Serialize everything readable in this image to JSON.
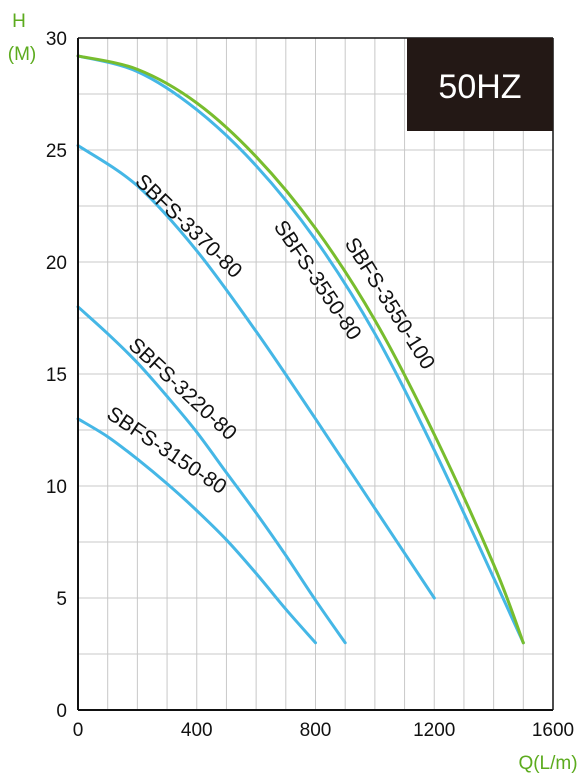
{
  "chart_data": {
    "type": "line",
    "frequency_badge": "50HZ",
    "y_axis_label_top": "H",
    "y_axis_label_unit": "(M)",
    "x_axis_label": "Q(L/m)",
    "xlim": [
      0,
      1600
    ],
    "ylim": [
      0,
      30
    ],
    "x_ticks": [
      "0",
      "400",
      "800",
      "1200",
      "1600"
    ],
    "y_ticks": [
      "0",
      "5",
      "10",
      "15",
      "20",
      "25",
      "30"
    ],
    "grid": true,
    "colors": {
      "blue": "#45b7e6",
      "green": "#78bd2e",
      "axis": "#111111",
      "grid": "#c8c8c8",
      "badge": "#231815",
      "axis_label": "#5cab1e"
    },
    "series": [
      {
        "name": "SBFS-3150-80",
        "color": "#45b7e6",
        "x": [
          0,
          100,
          200,
          300,
          400,
          500,
          600,
          700,
          800
        ],
        "y": [
          13,
          12.2,
          11.2,
          10.1,
          8.9,
          7.6,
          6.1,
          4.5,
          3
        ]
      },
      {
        "name": "SBFS-3220-80",
        "color": "#45b7e6",
        "x": [
          0,
          100,
          200,
          300,
          400,
          500,
          600,
          700,
          800,
          900
        ],
        "y": [
          18,
          16.8,
          15.5,
          14.0,
          12.4,
          10.6,
          8.8,
          6.9,
          4.9,
          3
        ]
      },
      {
        "name": "SBFS-3370-80",
        "color": "#45b7e6",
        "x": [
          0,
          200,
          400,
          600,
          800,
          1000,
          1200
        ],
        "y": [
          25.2,
          23.4,
          20.5,
          16.9,
          13.0,
          9.0,
          5
        ]
      },
      {
        "name": "SBFS-3550-80",
        "color": "#45b7e6",
        "x": [
          0,
          200,
          400,
          600,
          800,
          1000,
          1200,
          1400,
          1500
        ],
        "y": [
          29.2,
          28.5,
          26.8,
          24.3,
          21.0,
          16.8,
          11.6,
          5.9,
          3
        ]
      },
      {
        "name": "SBFS-3550-100",
        "color": "#78bd2e",
        "x": [
          0,
          200,
          400,
          600,
          800,
          1000,
          1200,
          1400,
          1500
        ],
        "y": [
          29.2,
          28.6,
          27.1,
          24.7,
          21.5,
          17.4,
          12.3,
          6.5,
          3
        ]
      }
    ]
  }
}
